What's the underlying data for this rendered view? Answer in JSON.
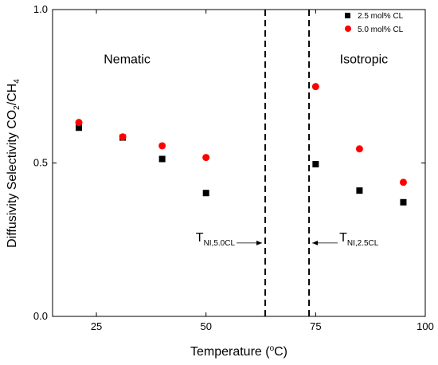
{
  "chart_data": {
    "type": "scatter",
    "xlabel": {
      "main": "Temperature (",
      "sup": "o",
      "end": "C)"
    },
    "ylabel": {
      "main": "Diffusivity Selectivity CO",
      "sub1": "2",
      "mid": "/CH",
      "sub2": "4"
    },
    "xlim": [
      15,
      100
    ],
    "ylim": [
      0.0,
      1.0
    ],
    "xticks": [
      25,
      50,
      75,
      100
    ],
    "yticks": [
      0.0,
      0.5,
      1.0
    ],
    "ytick_labels": [
      "0.0",
      "0.5",
      "1.0"
    ],
    "grid": false,
    "legend_position": "top-right",
    "series": [
      {
        "name": "2.5 mol% CL",
        "marker": "square",
        "color": "#000000",
        "x": [
          21,
          31,
          40,
          50,
          75,
          85,
          95
        ],
        "y": [
          0.615,
          0.583,
          0.513,
          0.402,
          0.496,
          0.41,
          0.372
        ]
      },
      {
        "name": "5.0 mol% CL",
        "marker": "circle",
        "color": "#ff0000",
        "x": [
          21,
          31,
          40,
          50,
          75,
          85,
          95
        ],
        "y": [
          0.632,
          0.585,
          0.556,
          0.518,
          0.749,
          0.546,
          0.437
        ]
      }
    ],
    "vlines": [
      {
        "x": 63.5,
        "style": "dashed"
      },
      {
        "x": 73.5,
        "style": "dashed"
      }
    ],
    "regions": [
      {
        "label": "Nematic",
        "x": 32,
        "y": 0.84
      },
      {
        "label": "Isotropic",
        "x": 86,
        "y": 0.84
      }
    ],
    "annotations": [
      {
        "main": "T",
        "sub": "NI,5.0CL",
        "arrow_to_x": 63.5,
        "y": 0.26,
        "side": "left"
      },
      {
        "main": "T",
        "sub": "NI,2.5CL",
        "arrow_to_x": 73.5,
        "y": 0.26,
        "side": "right"
      }
    ]
  }
}
